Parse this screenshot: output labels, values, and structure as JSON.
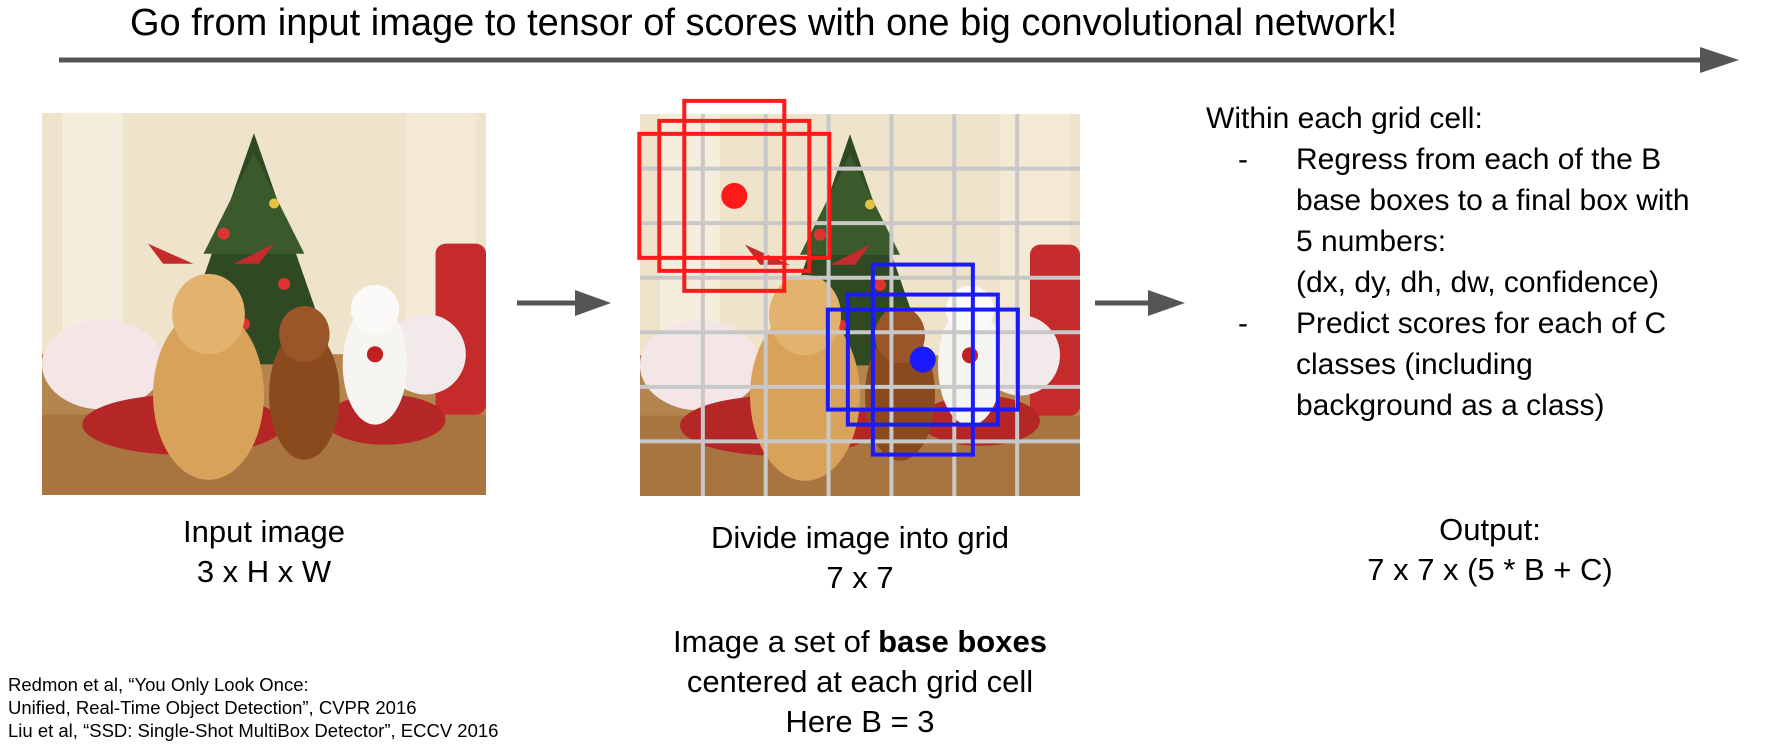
{
  "title": "Go from input image to tensor of scores with one big convolutional network!",
  "input": {
    "label": "Input image",
    "dims": "3 x H x W"
  },
  "grid": {
    "label": "Divide image into grid",
    "dims": "7 x 7",
    "rows": 7,
    "cols": 7,
    "note_prefix": "Image a set of ",
    "note_bold": "base boxes",
    "note_line2": "centered at each grid cell",
    "note_line3": "Here B = 3",
    "colors": {
      "grid_line": "#c8c8c8",
      "box_red": "#ff1a1a",
      "box_blue": "#1a1aff"
    }
  },
  "explanation": {
    "heading": "Within each grid cell:",
    "bullet_symbol": "-",
    "bullet1_lines": [
      "Regress from each of the B",
      "base boxes to a final box with",
      "5 numbers:",
      "(dx, dy, dh, dw, confidence)"
    ],
    "bullet2_lines": [
      "Predict scores for each of C",
      "classes (including",
      "background as a class)"
    ]
  },
  "output": {
    "label": "Output:",
    "formula": "7 x 7 x (5 * B + C)"
  },
  "references": [
    "Redmon et al, “You Only Look Once:",
    "Unified, Real-Time Object Detection”, CVPR 2016",
    "Liu et al, “SSD: Single-Shot MultiBox Detector”, ECCV 2016"
  ],
  "colors": {
    "arrow": "#555555"
  }
}
